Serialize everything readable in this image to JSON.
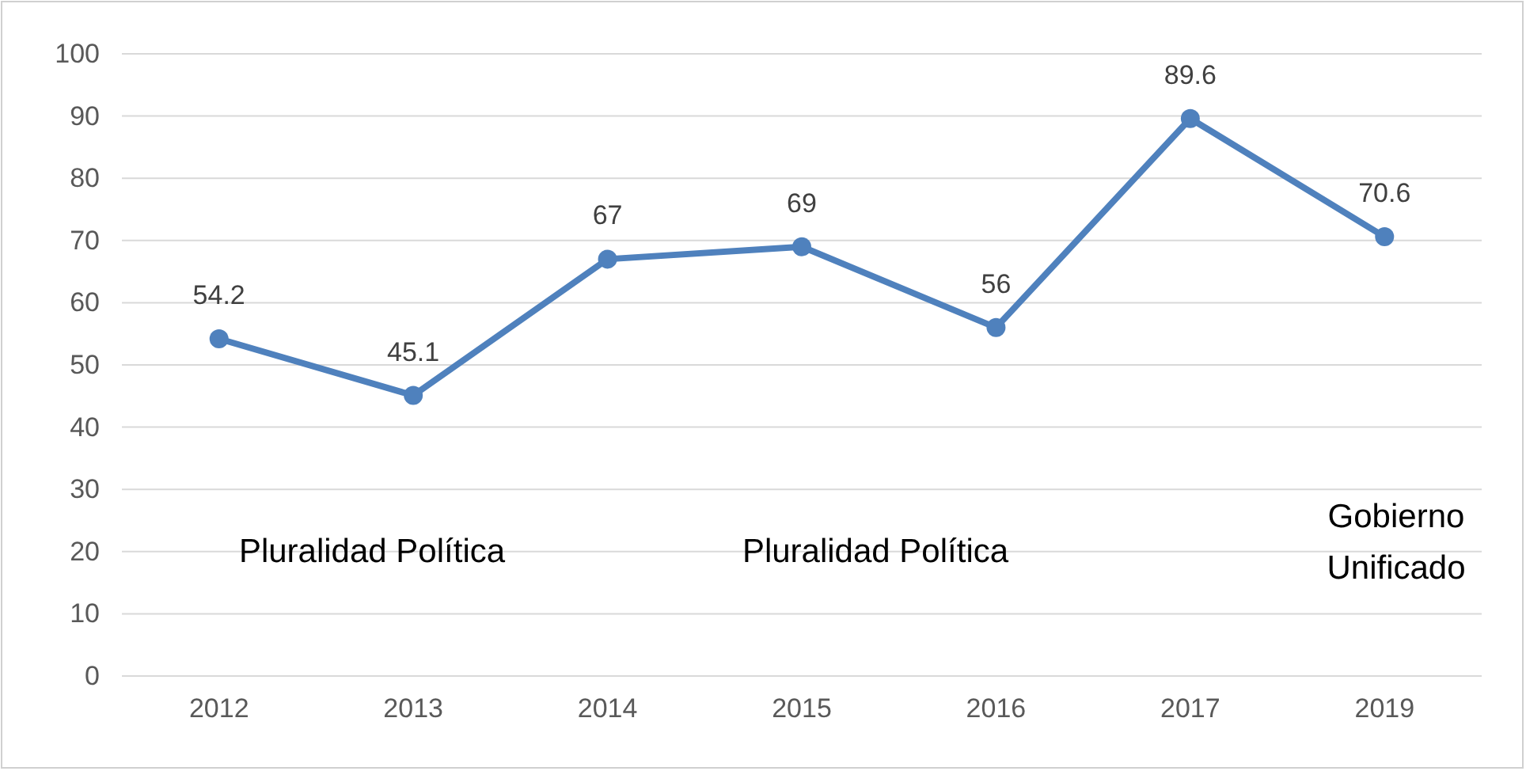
{
  "chart_data": {
    "type": "line",
    "categories": [
      "2012",
      "2013",
      "2014",
      "2015",
      "2016",
      "2017",
      "2019"
    ],
    "series": [
      {
        "color": "#4f81bd",
        "values": [
          54.2,
          45.1,
          67,
          69,
          56,
          89.6,
          70.6
        ]
      }
    ],
    "ylim": [
      0,
      100
    ],
    "yticks": [
      0,
      10,
      20,
      30,
      40,
      50,
      60,
      70,
      80,
      90,
      100
    ],
    "grid": "y",
    "marker": "circle",
    "line_style": "solid",
    "data_labels": true,
    "annotations": [
      "Pluralidad Política",
      "Pluralidad Política",
      "Gobierno\nUnificado"
    ]
  }
}
